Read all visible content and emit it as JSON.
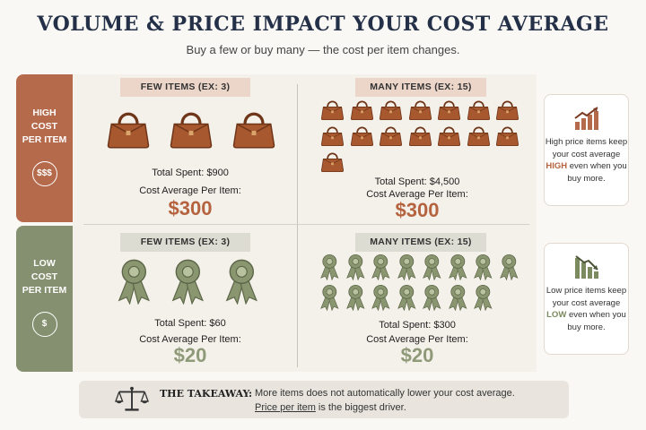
{
  "header": {
    "title": "VOLUME & PRICE IMPACT YOUR COST AVERAGE",
    "subtitle": "Buy a few or buy many — the cost per item changes."
  },
  "rows": [
    {
      "id": "high",
      "side_label_lines": [
        "HIGH",
        "COST",
        "PER ITEM"
      ],
      "side_icon": "$$$",
      "item_icon": "handbag-icon",
      "few": {
        "chip": "FEW ITEMS (EX: 3)",
        "count": 3,
        "total": "Total Spent: $900",
        "avg_label": "Cost Average Per Item:",
        "avg_value": "$300"
      },
      "many": {
        "chip": "MANY ITEMS (EX: 15)",
        "count": 15,
        "total": "Total Spent: $4,500",
        "avg_label": "Cost Average Per Item:",
        "avg_value": "$300"
      },
      "note": {
        "icon": "chart-up-icon",
        "before": "High price items keep your cost average",
        "emph": "HIGH",
        "after": "even when you buy more."
      }
    },
    {
      "id": "low",
      "side_label_lines": [
        "LOW",
        "COST",
        "PER ITEM"
      ],
      "side_icon": "$",
      "item_icon": "ribbon-icon",
      "few": {
        "chip": "FEW ITEMS (EX: 3)",
        "count": 3,
        "total": "Total Spent: $60",
        "avg_label": "Cost Average Per Item:",
        "avg_value": "$20"
      },
      "many": {
        "chip": "MANY ITEMS (EX: 15)",
        "count": 15,
        "total": "Total Spent: $300",
        "avg_label": "Cost Average Per Item:",
        "avg_value": "$20"
      },
      "note": {
        "icon": "chart-down-icon",
        "before": "Low price items keep your cost average",
        "emph": "LOW",
        "after": "even when you buy more."
      }
    }
  ],
  "takeaway": {
    "icon": "scale-icon",
    "label": "THE TAKEAWAY:",
    "line1": "More items does not automatically lower your cost average.",
    "line2_underlined": "Price per item",
    "line2_rest": " is the biggest driver."
  },
  "colors": {
    "high": "#b56a4c",
    "low": "#84906f",
    "bag": "#a8582f",
    "ribbon": "#8a9670"
  }
}
